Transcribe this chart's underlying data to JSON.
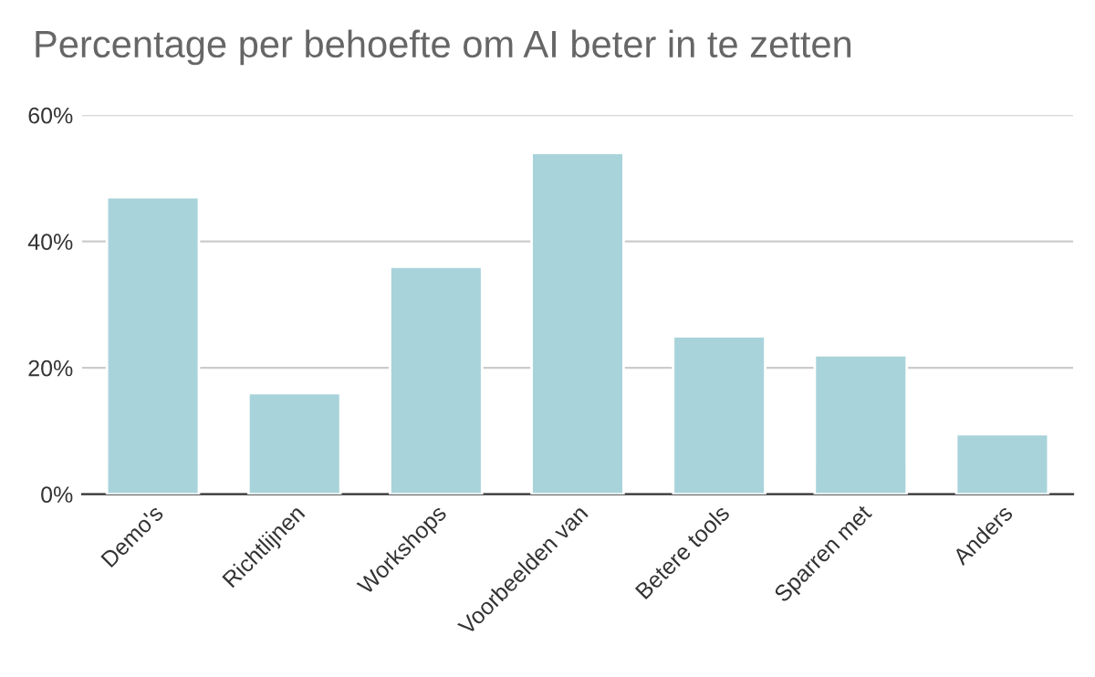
{
  "chart_data": {
    "type": "bar",
    "title": "Percentage per behoefte om AI beter in te zetten",
    "categories": [
      "Demo's",
      "Richtlijnen",
      "Workshops",
      "Voorbeelden van",
      "Betere tools",
      "Sparren met",
      "Anders"
    ],
    "values": [
      47,
      16,
      36,
      54,
      25,
      22,
      9.5
    ],
    "color": "#a8d3da",
    "ylim": [
      0,
      60
    ],
    "yticks": [
      {
        "value": 0,
        "label": "0%"
      },
      {
        "value": 20,
        "label": "20%"
      },
      {
        "value": 40,
        "label": "40%"
      },
      {
        "value": 60,
        "label": "60%"
      }
    ],
    "grid": "y"
  }
}
